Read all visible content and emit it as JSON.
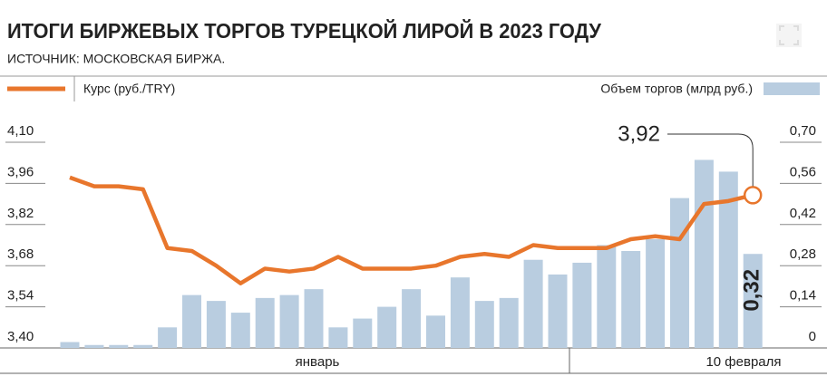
{
  "chart_data": {
    "type": "bar-line",
    "title": "ИТОГИ БИРЖЕВЫХ ТОРГОВ ТУРЕЦКОЙ ЛИРОЙ В 2023 ГОДУ",
    "subtitle": "ИСТОЧНИК: МОСКОВСКАЯ БИРЖА.",
    "categories": [
      null,
      null,
      null,
      null,
      null,
      null,
      null,
      null,
      null,
      null,
      null,
      null,
      null,
      null,
      null,
      null,
      null,
      null,
      null,
      null,
      null,
      null,
      null,
      null,
      null,
      null,
      null,
      null,
      null
    ],
    "period_labels": [
      "январь",
      "10 февраля"
    ],
    "series": [
      {
        "name": "Курс (руб./TRY)",
        "type": "line",
        "color": "#e8762c",
        "axis": "y",
        "values": [
          3.98,
          3.95,
          3.95,
          3.94,
          3.74,
          3.73,
          3.68,
          3.62,
          3.67,
          3.66,
          3.67,
          3.71,
          3.67,
          3.67,
          3.67,
          3.68,
          3.71,
          3.72,
          3.71,
          3.75,
          3.74,
          3.74,
          3.74,
          3.77,
          3.78,
          3.77,
          3.89,
          3.9,
          3.92
        ],
        "value_labels": [
          null,
          null,
          null,
          null,
          null,
          null,
          null,
          null,
          null,
          null,
          null,
          null,
          null,
          null,
          null,
          null,
          null,
          null,
          null,
          null,
          null,
          null,
          null,
          null,
          null,
          null,
          null,
          null,
          "3,92"
        ]
      },
      {
        "name": "Объем торгов (млрд руб.)",
        "type": "bar",
        "color": "#b9cde0",
        "axis": "y2",
        "values": [
          0.02,
          0.01,
          0.01,
          0.01,
          0.07,
          0.18,
          0.16,
          0.12,
          0.17,
          0.18,
          0.2,
          0.07,
          0.1,
          0.14,
          0.2,
          0.11,
          0.24,
          0.16,
          0.17,
          0.3,
          0.25,
          0.29,
          0.35,
          0.33,
          0.37,
          0.51,
          0.64,
          0.6,
          0.32
        ],
        "value_labels": [
          null,
          null,
          null,
          null,
          null,
          null,
          null,
          null,
          null,
          null,
          null,
          null,
          null,
          null,
          null,
          null,
          null,
          null,
          null,
          null,
          null,
          null,
          null,
          null,
          null,
          null,
          null,
          null,
          "0,32"
        ]
      }
    ],
    "ylim": [
      3.4,
      4.1
    ],
    "yticks": [
      {
        "value": 3.4,
        "label": "3,40"
      },
      {
        "value": 3.54,
        "label": "3,54"
      },
      {
        "value": 3.68,
        "label": "3,68"
      },
      {
        "value": 3.82,
        "label": "3,82"
      },
      {
        "value": 3.96,
        "label": "3,96"
      },
      {
        "value": 4.1,
        "label": "4,10"
      }
    ],
    "y2lim": [
      0,
      0.7
    ],
    "y2ticks": [
      0,
      {
        "value": 0.14,
        "label": "0,14"
      },
      {
        "value": 0.28,
        "label": "0,28"
      },
      {
        "value": 0.42,
        "label": "0,42"
      },
      {
        "value": 0.56,
        "label": "0,56"
      },
      {
        "value": 0.7,
        "label": "0,70"
      }
    ]
  }
}
